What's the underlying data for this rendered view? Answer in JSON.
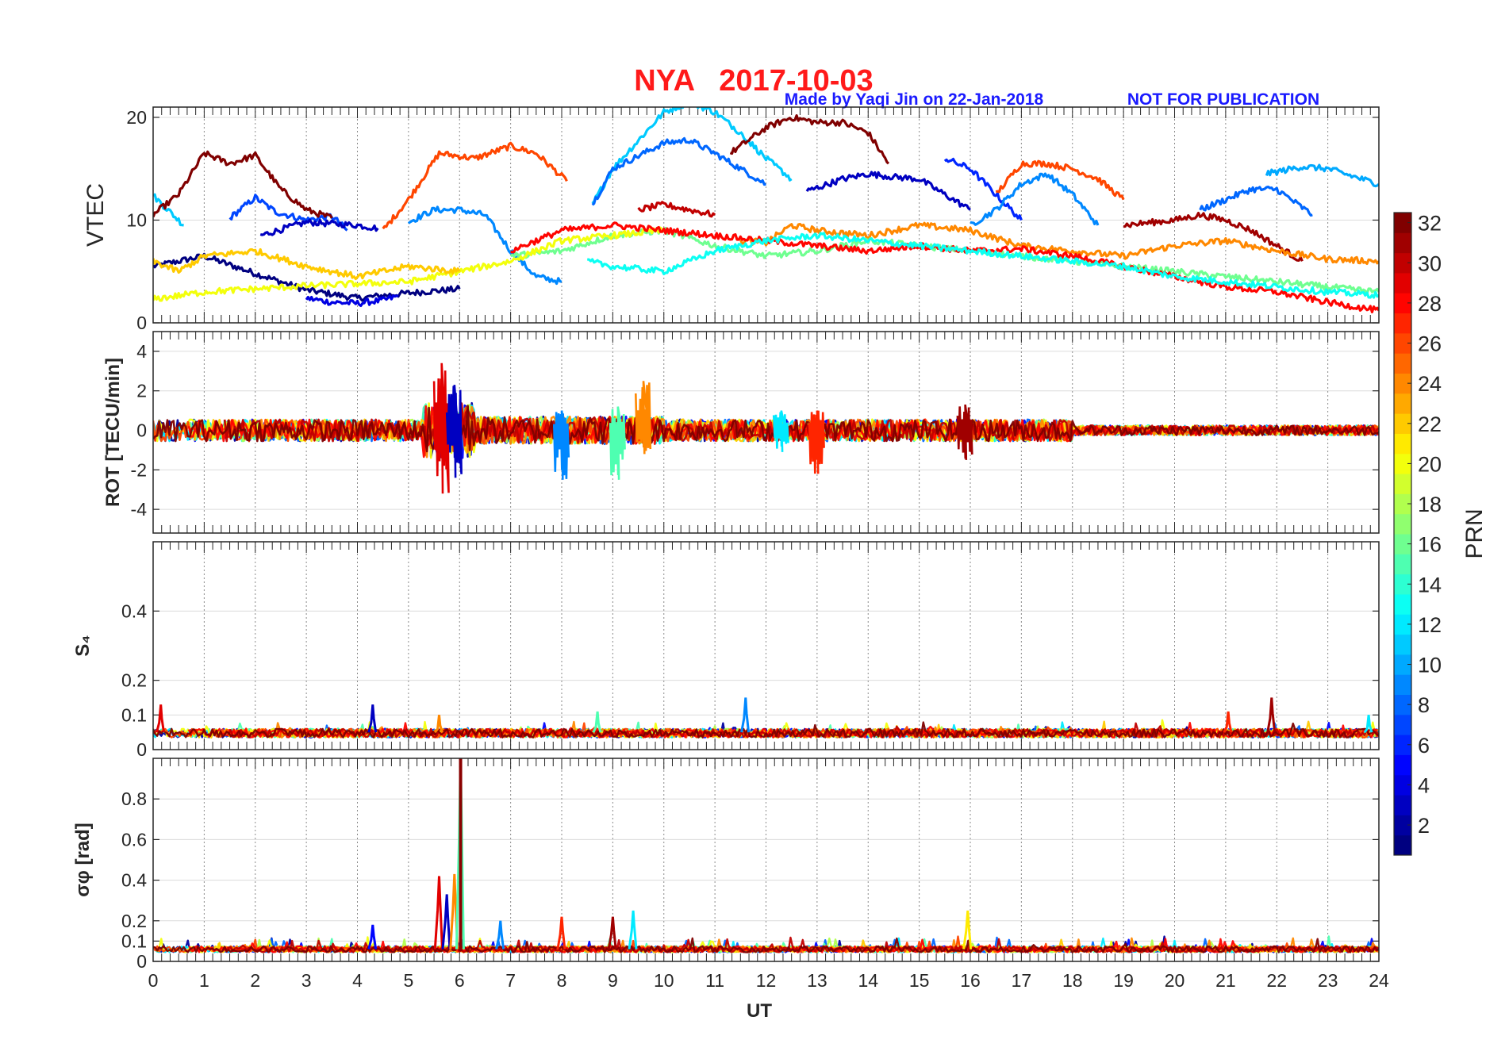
{
  "header": {
    "title": "NYA   2017-10-03",
    "credit": "Made by Yaqi Jin on 22-Jan-2018",
    "notice": "NOT FOR PUBLICATION",
    "title_color": "#ff1a1a",
    "credit_color": "#1a1aff"
  },
  "chart_data": [
    {
      "type": "line",
      "panel": "VTEC",
      "ylabel": "VTEC",
      "ylim": [
        0,
        21
      ],
      "yticks": [
        "0",
        "10",
        "20"
      ],
      "grid": true,
      "series_note": "one trace per satellite PRN, colored by PRN (jet colormap)",
      "series": [
        {
          "prn": 1,
          "x": [
            0.0,
            1.0,
            2.0,
            3.0,
            4.0,
            5.0,
            6.0
          ],
          "y": [
            5.5,
            6.5,
            4.8,
            3.2,
            2.4,
            2.9,
            3.3
          ]
        },
        {
          "prn": 4,
          "x": [
            3.0,
            3.5,
            4.0,
            4.5,
            4.8
          ],
          "y": [
            2.4,
            2.0,
            1.9,
            2.2,
            2.6
          ]
        },
        {
          "prn": 7,
          "x": [
            1.5,
            2.0,
            2.4,
            3.0,
            3.5,
            3.8
          ],
          "y": [
            10.2,
            12.2,
            10.8,
            10.0,
            10.4,
            9.0
          ]
        },
        {
          "prn": 3,
          "x": [
            2.1,
            3.0,
            4.0,
            4.4
          ],
          "y": [
            8.5,
            9.8,
            9.5,
            9.2
          ]
        },
        {
          "prn": 11,
          "x": [
            0.0,
            0.6
          ],
          "y": [
            12.4,
            9.5
          ]
        },
        {
          "prn": 9,
          "x": [
            5.0,
            5.5,
            6.0,
            6.5,
            7.0,
            7.5,
            8.0
          ],
          "y": [
            9.8,
            11.0,
            11.0,
            10.5,
            7.0,
            4.5,
            4.0
          ]
        },
        {
          "prn": 26,
          "x": [
            4.5,
            5.0,
            5.6,
            6.3,
            7.0,
            7.5,
            8.1
          ],
          "y": [
            9.0,
            12.0,
            16.5,
            16.0,
            17.2,
            16.5,
            13.8
          ]
        },
        {
          "prn": 32,
          "x": [
            0.0,
            0.5,
            1.0,
            1.5,
            2.0,
            2.5,
            3.0,
            3.5
          ],
          "y": [
            10.5,
            12.5,
            16.5,
            15.5,
            16.3,
            13.0,
            11.0,
            10.2
          ]
        },
        {
          "prn": 11,
          "x": [
            8.6,
            9.0,
            10.0,
            10.5,
            11.0,
            11.5
          ],
          "y": [
            11.5,
            15.0,
            20.5,
            21.5,
            20.5,
            18.5
          ]
        },
        {
          "prn": 8,
          "x": [
            8.6,
            9.0,
            10.0,
            10.5,
            11.0,
            11.5,
            12.0
          ],
          "y": [
            11.5,
            15.0,
            17.5,
            17.8,
            16.5,
            15.0,
            13.5
          ]
        },
        {
          "prn": 11,
          "x": [
            11.5,
            12.0,
            12.5
          ],
          "y": [
            18.5,
            16.0,
            14.0
          ]
        },
        {
          "prn": 32,
          "x": [
            11.3,
            12.0,
            12.5,
            13.0,
            13.5,
            14.0,
            14.4
          ],
          "y": [
            16.5,
            19.0,
            20.0,
            19.5,
            19.5,
            18.5,
            15.5
          ]
        },
        {
          "prn": 3,
          "x": [
            12.8,
            13.5,
            14.0,
            14.5,
            15.0,
            15.5,
            16.0
          ],
          "y": [
            12.8,
            14.0,
            14.5,
            14.2,
            14.0,
            12.5,
            11.0
          ]
        },
        {
          "prn": 6,
          "x": [
            15.5,
            16.0,
            16.5,
            17.0
          ],
          "y": [
            16.0,
            15.0,
            12.5,
            10.0
          ]
        },
        {
          "prn": 9,
          "x": [
            16.0,
            16.5,
            17.0,
            17.5,
            18.0,
            18.5
          ],
          "y": [
            9.5,
            11.0,
            13.5,
            14.5,
            12.5,
            9.5
          ]
        },
        {
          "prn": 26,
          "x": [
            16.5,
            17.0,
            17.5,
            18.0,
            18.5,
            19.0
          ],
          "y": [
            12.5,
            15.5,
            15.5,
            15.0,
            14.0,
            12.0
          ]
        },
        {
          "prn": 30,
          "x": [
            9.5,
            10.0,
            10.5,
            11.0
          ],
          "y": [
            11.0,
            11.5,
            11.0,
            10.5
          ]
        },
        {
          "prn": 8,
          "x": [
            20.5,
            21.0,
            21.5,
            22.0,
            22.7
          ],
          "y": [
            11.0,
            12.0,
            13.0,
            13.0,
            10.5
          ]
        },
        {
          "prn": 10,
          "x": [
            21.8,
            22.5,
            23.0,
            24.0
          ],
          "y": [
            14.5,
            15.2,
            15.0,
            13.5
          ]
        },
        {
          "prn": 31,
          "x": [
            19.0,
            20.0,
            20.5,
            21.0,
            21.5,
            22.0,
            22.5
          ],
          "y": [
            9.5,
            10.0,
            10.5,
            10.0,
            9.0,
            7.5,
            6.0
          ]
        },
        {
          "prn": 24,
          "x": [
            11.5,
            12.0,
            12.5,
            13.0,
            14.0,
            15.0,
            16.0,
            17.0,
            18.0,
            19.0,
            20.0,
            21.0,
            22.0,
            23.0,
            24.0
          ],
          "y": [
            8.0,
            7.8,
            9.5,
            9.0,
            8.5,
            9.5,
            9.0,
            7.5,
            7.0,
            6.5,
            7.5,
            8.0,
            7.0,
            6.2,
            6.0
          ]
        },
        {
          "prn": 16,
          "x": [
            7.0,
            8.0,
            9.0,
            10.0,
            11.0,
            12.0,
            13.0,
            14.0,
            15.0,
            16.0,
            17.0,
            18.0,
            19.0,
            20.0,
            21.0,
            22.0,
            23.0,
            24.0
          ],
          "y": [
            6.5,
            7.0,
            8.5,
            9.0,
            7.5,
            6.5,
            7.0,
            8.0,
            7.5,
            7.0,
            6.5,
            6.0,
            5.5,
            5.0,
            4.5,
            4.0,
            3.5,
            3.0
          ]
        },
        {
          "prn": 20,
          "x": [
            0.0,
            1.0,
            2.0,
            3.0,
            4.0,
            5.0,
            6.0,
            7.0,
            8.0,
            9.0,
            10.0
          ],
          "y": [
            2.3,
            3.0,
            3.3,
            3.6,
            3.8,
            4.0,
            5.0,
            6.0,
            8.0,
            8.5,
            9.0
          ]
        },
        {
          "prn": 22,
          "x": [
            0.0,
            0.5,
            1.0,
            2.0,
            3.0,
            4.0,
            5.0,
            6.0
          ],
          "y": [
            6.0,
            5.0,
            6.5,
            7.0,
            5.5,
            4.5,
            5.5,
            5.0
          ]
        },
        {
          "prn": 28,
          "x": [
            7.0,
            8.0,
            9.0,
            10.0,
            11.0,
            12.0,
            13.0,
            14.0,
            15.0,
            16.0,
            17.0,
            18.0,
            19.0,
            20.0,
            21.0,
            22.0,
            23.0,
            24.0
          ],
          "y": [
            7.0,
            9.0,
            9.5,
            9.0,
            8.5,
            8.0,
            7.5,
            7.0,
            7.5,
            7.0,
            7.2,
            6.5,
            5.5,
            4.5,
            3.5,
            3.0,
            2.0,
            1.2
          ]
        },
        {
          "prn": 13,
          "x": [
            8.5,
            9.0,
            10.0,
            11.0,
            12.0,
            13.0,
            14.0,
            15.0,
            16.0,
            17.0,
            18.0,
            19.0,
            20.0,
            21.0,
            22.0,
            23.0,
            24.0
          ],
          "y": [
            6.0,
            5.5,
            5.0,
            7.0,
            8.0,
            8.5,
            8.0,
            7.5,
            7.0,
            6.5,
            6.0,
            5.5,
            4.5,
            4.0,
            3.5,
            3.0,
            2.7
          ]
        }
      ]
    },
    {
      "type": "line",
      "panel": "ROT",
      "ylabel": "ROT [TECU/min]",
      "ylim": [
        -5.2,
        5.0
      ],
      "yticks": [
        "-4",
        "-2",
        "0",
        "2",
        "4"
      ],
      "grid": true,
      "series_note": "rate of TEC, mostly within ±1 TECU/min; strongest disturbance near 5.6–6.1 UT",
      "spikes": [
        {
          "x": 5.65,
          "min": -3.2,
          "max": 3.4
        },
        {
          "x": 5.9,
          "min": -2.4,
          "max": 2.3
        },
        {
          "x": 9.6,
          "min": -1.2,
          "max": 2.5
        },
        {
          "x": 9.1,
          "min": -2.5,
          "max": 1.2
        },
        {
          "x": 8.0,
          "min": -2.5,
          "max": 1.0
        },
        {
          "x": 13.0,
          "min": -2.2,
          "max": 1.0
        },
        {
          "x": 15.9,
          "min": -1.5,
          "max": 1.3
        },
        {
          "x": 12.3,
          "min": -1.1,
          "max": 1.0
        }
      ]
    },
    {
      "type": "line",
      "panel": "S4",
      "ylabel": "S₄",
      "ylim": [
        0,
        0.6
      ],
      "yticks": [
        "0",
        "0.1",
        "0.2",
        "0.4"
      ],
      "grid": true,
      "series_note": "amplitude scintillation index, background ~0.03–0.06",
      "spikes": [
        {
          "x": 0.15,
          "value": 0.13
        },
        {
          "x": 4.3,
          "value": 0.13
        },
        {
          "x": 5.6,
          "value": 0.1
        },
        {
          "x": 8.7,
          "value": 0.11
        },
        {
          "x": 11.6,
          "value": 0.15
        },
        {
          "x": 21.05,
          "value": 0.11
        },
        {
          "x": 21.9,
          "value": 0.15
        },
        {
          "x": 23.8,
          "value": 0.1
        }
      ]
    },
    {
      "type": "line",
      "panel": "sigma_phi",
      "ylabel": "σφ [rad]",
      "ylim": [
        0,
        1.0
      ],
      "yticks": [
        "0",
        "0.1",
        "0.2",
        "0.4",
        "0.6",
        "0.8"
      ],
      "grid": true,
      "series_note": "phase scintillation index, background ~0.04–0.07",
      "spikes": [
        {
          "x": 5.6,
          "value": 0.42
        },
        {
          "x": 5.75,
          "value": 0.33
        },
        {
          "x": 5.9,
          "value": 0.43
        },
        {
          "x": 6.02,
          "value": 1.0
        },
        {
          "x": 6.8,
          "value": 0.2
        },
        {
          "x": 8.0,
          "value": 0.22
        },
        {
          "x": 9.0,
          "value": 0.22
        },
        {
          "x": 9.4,
          "value": 0.25
        },
        {
          "x": 4.3,
          "value": 0.18
        },
        {
          "x": 15.95,
          "value": 0.25
        }
      ]
    }
  ],
  "xaxis": {
    "label": "UT",
    "xlim": [
      0,
      24
    ],
    "ticks": [
      "0",
      "1",
      "2",
      "3",
      "4",
      "5",
      "6",
      "7",
      "8",
      "9",
      "10",
      "11",
      "12",
      "13",
      "14",
      "15",
      "16",
      "17",
      "18",
      "19",
      "20",
      "21",
      "22",
      "23",
      "24"
    ]
  },
  "colorbar": {
    "label": "PRN",
    "range": [
      1,
      32
    ],
    "ticks": [
      "2",
      "4",
      "6",
      "8",
      "10",
      "12",
      "14",
      "16",
      "18",
      "20",
      "22",
      "24",
      "26",
      "28",
      "30",
      "32"
    ],
    "colormap": "jet"
  }
}
